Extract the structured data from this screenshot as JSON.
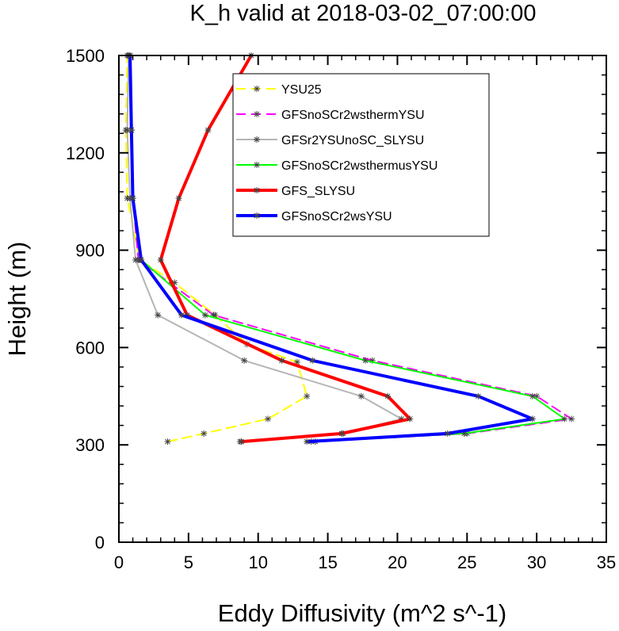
{
  "chart_data": {
    "type": "line",
    "title": "K_h valid at 2018-03-02_07:00:00",
    "xlabel": "Eddy Diffusivity (m^2 s^-1)",
    "ylabel": "Height (m)",
    "xlim": [
      0,
      35
    ],
    "ylim": [
      0,
      1500
    ],
    "xticks": [
      0,
      5,
      10,
      15,
      20,
      25,
      30,
      35
    ],
    "yticks": [
      0,
      300,
      600,
      900,
      1200,
      1500
    ],
    "legend_position": "upper-center",
    "grid": false,
    "series": [
      {
        "name": "YSU25",
        "color": "#ffff00",
        "dash": "dashed",
        "width": 2,
        "x": [
          3.5,
          6.1,
          10.7,
          13.5,
          12.8,
          9.2,
          6.9,
          4.0,
          1.5,
          0.6,
          0.5,
          0.6
        ],
        "y": [
          310,
          335,
          380,
          450,
          555,
          610,
          700,
          800,
          870,
          1060,
          1270,
          1500
        ]
      },
      {
        "name": "GFSnoSCr2wsthermYSU",
        "color": "#ff00ff",
        "dash": "dashed",
        "width": 2,
        "x": [
          14.1,
          25.0,
          32.5,
          30.0,
          18.2,
          6.8,
          1.4,
          1.0,
          0.9,
          0.8
        ],
        "y": [
          310,
          335,
          380,
          450,
          560,
          700,
          870,
          1060,
          1270,
          1500
        ]
      },
      {
        "name": "GFSr2YSUnoSC_SLYSU",
        "color": "#b5b5b5",
        "dash": "solid",
        "width": 2,
        "x": [
          8.7,
          16.1,
          20.3,
          17.4,
          9.0,
          2.8,
          1.2,
          0.8,
          0.6,
          0.7
        ],
        "y": [
          310,
          335,
          380,
          450,
          560,
          700,
          870,
          1060,
          1270,
          1500
        ]
      },
      {
        "name": "GFSnoSCr2wsthermusYSU",
        "color": "#00ff00",
        "dash": "solid",
        "width": 2,
        "x": [
          13.8,
          24.8,
          32.0,
          29.7,
          17.7,
          6.2,
          1.6,
          1.0,
          0.9,
          0.8
        ],
        "y": [
          310,
          335,
          380,
          450,
          560,
          700,
          870,
          1060,
          1270,
          1500
        ]
      },
      {
        "name": "GFS_SLYSU",
        "color": "#ff0000",
        "dash": "solid",
        "width": 4,
        "x": [
          8.8,
          16.0,
          20.9,
          19.3,
          11.7,
          4.9,
          3.0,
          4.3,
          6.4,
          9.5
        ],
        "y": [
          310,
          335,
          380,
          450,
          560,
          700,
          870,
          1060,
          1270,
          1500
        ]
      },
      {
        "name": "GFSnoSCr2wsYSU",
        "color": "#0000ff",
        "dash": "solid",
        "width": 4,
        "x": [
          13.5,
          23.6,
          29.7,
          25.8,
          13.9,
          4.5,
          1.6,
          1.0,
          0.9,
          0.8
        ],
        "y": [
          310,
          335,
          380,
          450,
          560,
          700,
          870,
          1060,
          1270,
          1500
        ]
      }
    ]
  }
}
